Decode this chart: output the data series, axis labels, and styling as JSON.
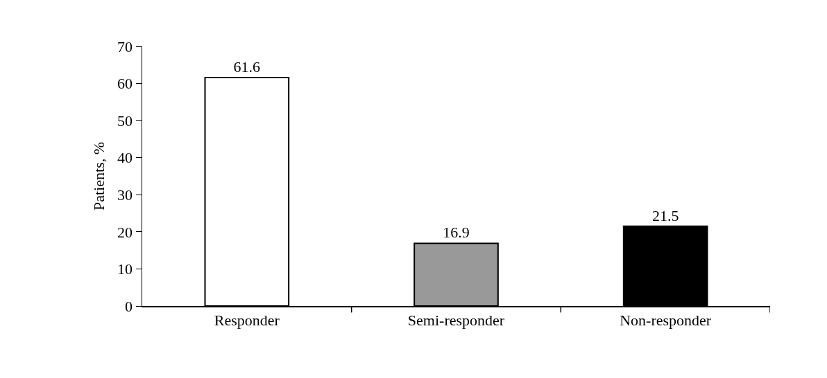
{
  "chart_data": {
    "type": "bar",
    "ylabel": "Patients, %",
    "categories": [
      "Responder",
      "Semi-responder",
      "Non-responder"
    ],
    "values": [
      61.6,
      16.9,
      21.5
    ],
    "colors": [
      "#ffffff",
      "#999999",
      "#000000"
    ],
    "ylim": [
      0,
      70
    ],
    "yticks": [
      0,
      10,
      20,
      30,
      40,
      50,
      60,
      70
    ],
    "grid": false,
    "data_labels": true
  }
}
